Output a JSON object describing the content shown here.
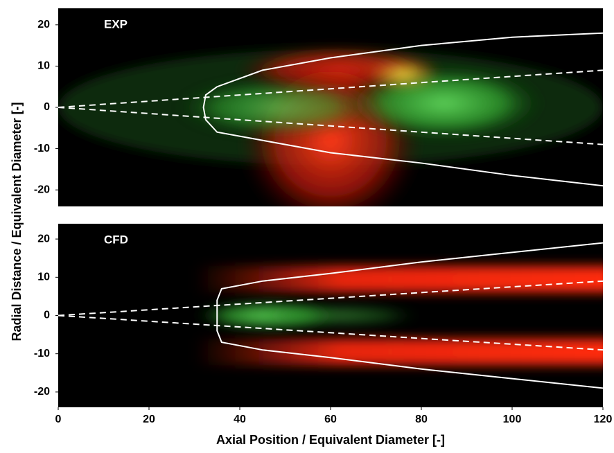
{
  "chart_data": [
    {
      "type": "image",
      "annotation": "EXP",
      "ylabel": "Radial Distance / Equivalent Diameter [-]",
      "xlim": [
        0,
        120
      ],
      "ylim": [
        -24,
        24
      ],
      "yticks": [
        -20,
        -10,
        0,
        10,
        20
      ],
      "series": [
        {
          "color": "#ffffff",
          "dashed": true,
          "x": [
            0,
            120
          ],
          "values": [
            0,
            9
          ]
        },
        {
          "color": "#ffffff",
          "dashed": true,
          "x": [
            0,
            120
          ],
          "values": [
            0,
            -9
          ]
        },
        {
          "color": "#ffffff",
          "dashed": false,
          "x": [
            120,
            100,
            80,
            60,
            45,
            35,
            32.5,
            32,
            32.5,
            35,
            45,
            60,
            80,
            100,
            120
          ],
          "values": [
            18,
            17,
            15,
            12,
            9,
            5,
            3,
            0,
            -3,
            -6,
            -8,
            -11,
            -13.5,
            -16.5,
            -19
          ]
        }
      ]
    },
    {
      "type": "image",
      "annotation": "CFD",
      "xlabel": "Axial Position / Equivalent Diameter [-]",
      "xlim": [
        0,
        120
      ],
      "ylim": [
        -24,
        24
      ],
      "xticks": [
        0,
        20,
        40,
        60,
        80,
        100,
        120
      ],
      "yticks": [
        -20,
        -10,
        0,
        10,
        20
      ],
      "series": [
        {
          "color": "#ffffff",
          "dashed": true,
          "x": [
            0,
            120
          ],
          "values": [
            0,
            9
          ]
        },
        {
          "color": "#ffffff",
          "dashed": true,
          "x": [
            0,
            120
          ],
          "values": [
            0,
            -9
          ]
        },
        {
          "color": "#ffffff",
          "dashed": false,
          "x": [
            120,
            100,
            80,
            60,
            45,
            36,
            35,
            35,
            36,
            45,
            60,
            80,
            100,
            120
          ],
          "values": [
            19,
            16.5,
            14,
            11,
            9,
            7,
            4,
            -4,
            -7,
            -9,
            -11,
            -14,
            -16.5,
            -19
          ]
        }
      ]
    }
  ]
}
